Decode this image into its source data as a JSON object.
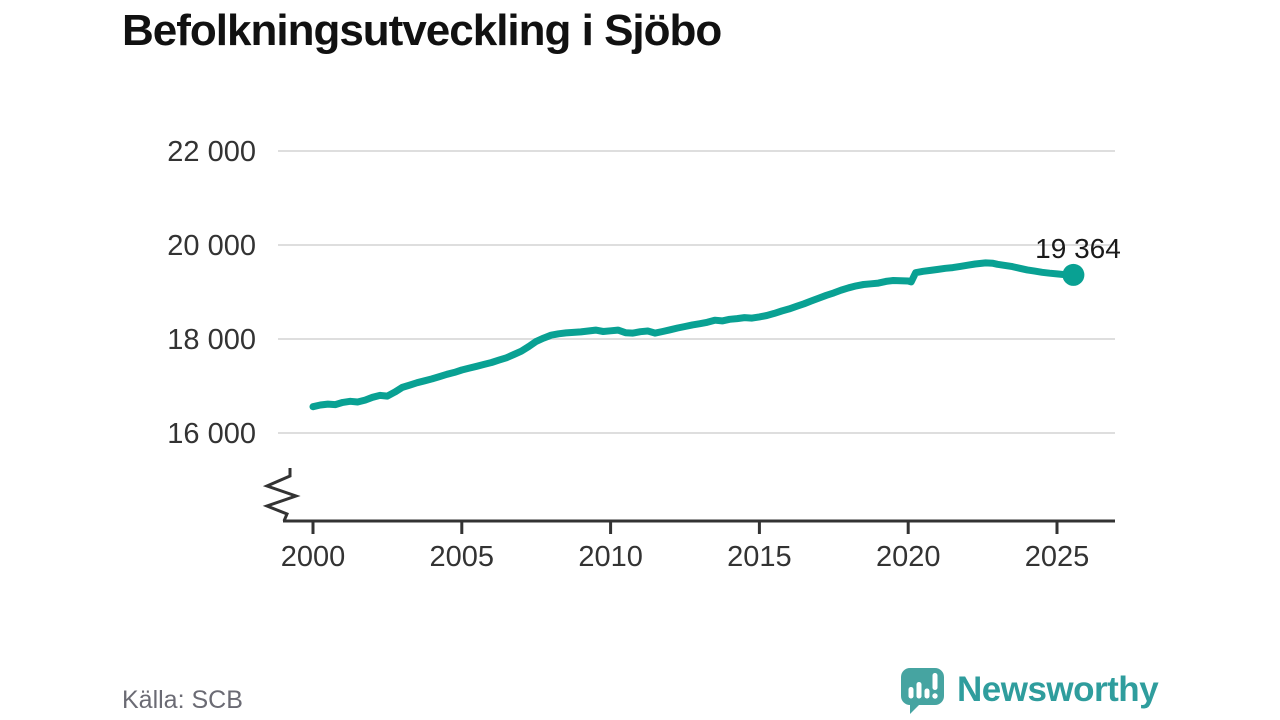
{
  "title": "Befolkningsutveckling i Sjöbo",
  "source": {
    "label": "Källa: SCB"
  },
  "brand": {
    "name": "Newsworthy"
  },
  "colors": {
    "line": "#09a193",
    "grid": "#dedede",
    "axis": "#333333",
    "tick_label": "#333333",
    "title": "#111111",
    "annotation": "#1a1a1a",
    "source_text": "#6b6b74",
    "brand_teal": "#2f9d9d",
    "badge_teal": "#46a4a1"
  },
  "chart_data": {
    "type": "line",
    "title": "Befolkningsutveckling i Sjöbo",
    "xlabel": "",
    "ylabel": "",
    "x_ticks": [
      2000,
      2005,
      2010,
      2015,
      2020,
      2025
    ],
    "y_ticks": [
      16000,
      18000,
      20000,
      22000
    ],
    "y_tick_labels": [
      "16 000",
      "18 000",
      "20 000",
      "22 000"
    ],
    "ylim": [
      16000,
      22000
    ],
    "xlim": [
      1999,
      2027
    ],
    "y_axis_break": true,
    "grid": "horizontal",
    "legend": "none",
    "end_label": "19 364",
    "end_value": 19364,
    "series": [
      {
        "name": "Befolkning i Sjöbo",
        "points": [
          [
            2000.0,
            16560
          ],
          [
            2000.25,
            16595
          ],
          [
            2000.5,
            16615
          ],
          [
            2000.75,
            16605
          ],
          [
            2001.0,
            16650
          ],
          [
            2001.25,
            16675
          ],
          [
            2001.5,
            16660
          ],
          [
            2001.75,
            16700
          ],
          [
            2002.0,
            16760
          ],
          [
            2002.25,
            16800
          ],
          [
            2002.5,
            16785
          ],
          [
            2002.75,
            16870
          ],
          [
            2003.0,
            16970
          ],
          [
            2003.25,
            17020
          ],
          [
            2003.5,
            17070
          ],
          [
            2003.75,
            17110
          ],
          [
            2004.0,
            17150
          ],
          [
            2004.25,
            17200
          ],
          [
            2004.5,
            17250
          ],
          [
            2004.75,
            17290
          ],
          [
            2005.0,
            17340
          ],
          [
            2005.25,
            17380
          ],
          [
            2005.5,
            17420
          ],
          [
            2005.75,
            17460
          ],
          [
            2006.0,
            17500
          ],
          [
            2006.25,
            17550
          ],
          [
            2006.5,
            17600
          ],
          [
            2006.75,
            17670
          ],
          [
            2007.0,
            17740
          ],
          [
            2007.25,
            17840
          ],
          [
            2007.5,
            17950
          ],
          [
            2007.75,
            18020
          ],
          [
            2008.0,
            18080
          ],
          [
            2008.25,
            18110
          ],
          [
            2008.5,
            18130
          ],
          [
            2008.75,
            18140
          ],
          [
            2009.0,
            18150
          ],
          [
            2009.25,
            18170
          ],
          [
            2009.5,
            18190
          ],
          [
            2009.75,
            18160
          ],
          [
            2010.0,
            18175
          ],
          [
            2010.25,
            18190
          ],
          [
            2010.5,
            18135
          ],
          [
            2010.75,
            18125
          ],
          [
            2011.0,
            18155
          ],
          [
            2011.25,
            18170
          ],
          [
            2011.5,
            18125
          ],
          [
            2011.75,
            18160
          ],
          [
            2012.0,
            18195
          ],
          [
            2012.25,
            18235
          ],
          [
            2012.5,
            18265
          ],
          [
            2012.75,
            18300
          ],
          [
            2013.0,
            18325
          ],
          [
            2013.25,
            18355
          ],
          [
            2013.5,
            18400
          ],
          [
            2013.75,
            18385
          ],
          [
            2014.0,
            18420
          ],
          [
            2014.25,
            18435
          ],
          [
            2014.5,
            18455
          ],
          [
            2014.75,
            18445
          ],
          [
            2015.0,
            18470
          ],
          [
            2015.25,
            18500
          ],
          [
            2015.5,
            18545
          ],
          [
            2015.75,
            18595
          ],
          [
            2016.0,
            18640
          ],
          [
            2016.25,
            18695
          ],
          [
            2016.5,
            18750
          ],
          [
            2016.75,
            18810
          ],
          [
            2017.0,
            18870
          ],
          [
            2017.25,
            18930
          ],
          [
            2017.5,
            18980
          ],
          [
            2017.75,
            19040
          ],
          [
            2018.0,
            19090
          ],
          [
            2018.25,
            19130
          ],
          [
            2018.5,
            19160
          ],
          [
            2018.75,
            19175
          ],
          [
            2019.0,
            19190
          ],
          [
            2019.25,
            19225
          ],
          [
            2019.5,
            19245
          ],
          [
            2019.75,
            19240
          ],
          [
            2020.0,
            19235
          ],
          [
            2020.1,
            19215
          ],
          [
            2020.25,
            19410
          ],
          [
            2020.5,
            19440
          ],
          [
            2020.75,
            19460
          ],
          [
            2021.0,
            19480
          ],
          [
            2021.25,
            19505
          ],
          [
            2021.5,
            19520
          ],
          [
            2021.75,
            19545
          ],
          [
            2022.0,
            19570
          ],
          [
            2022.25,
            19595
          ],
          [
            2022.6,
            19620
          ],
          [
            2022.85,
            19610
          ],
          [
            2023.0,
            19590
          ],
          [
            2023.25,
            19565
          ],
          [
            2023.5,
            19540
          ],
          [
            2023.75,
            19505
          ],
          [
            2024.0,
            19470
          ],
          [
            2024.25,
            19445
          ],
          [
            2024.5,
            19420
          ],
          [
            2024.75,
            19400
          ],
          [
            2025.0,
            19385
          ],
          [
            2025.25,
            19370
          ],
          [
            2025.55,
            19364
          ]
        ]
      }
    ]
  }
}
